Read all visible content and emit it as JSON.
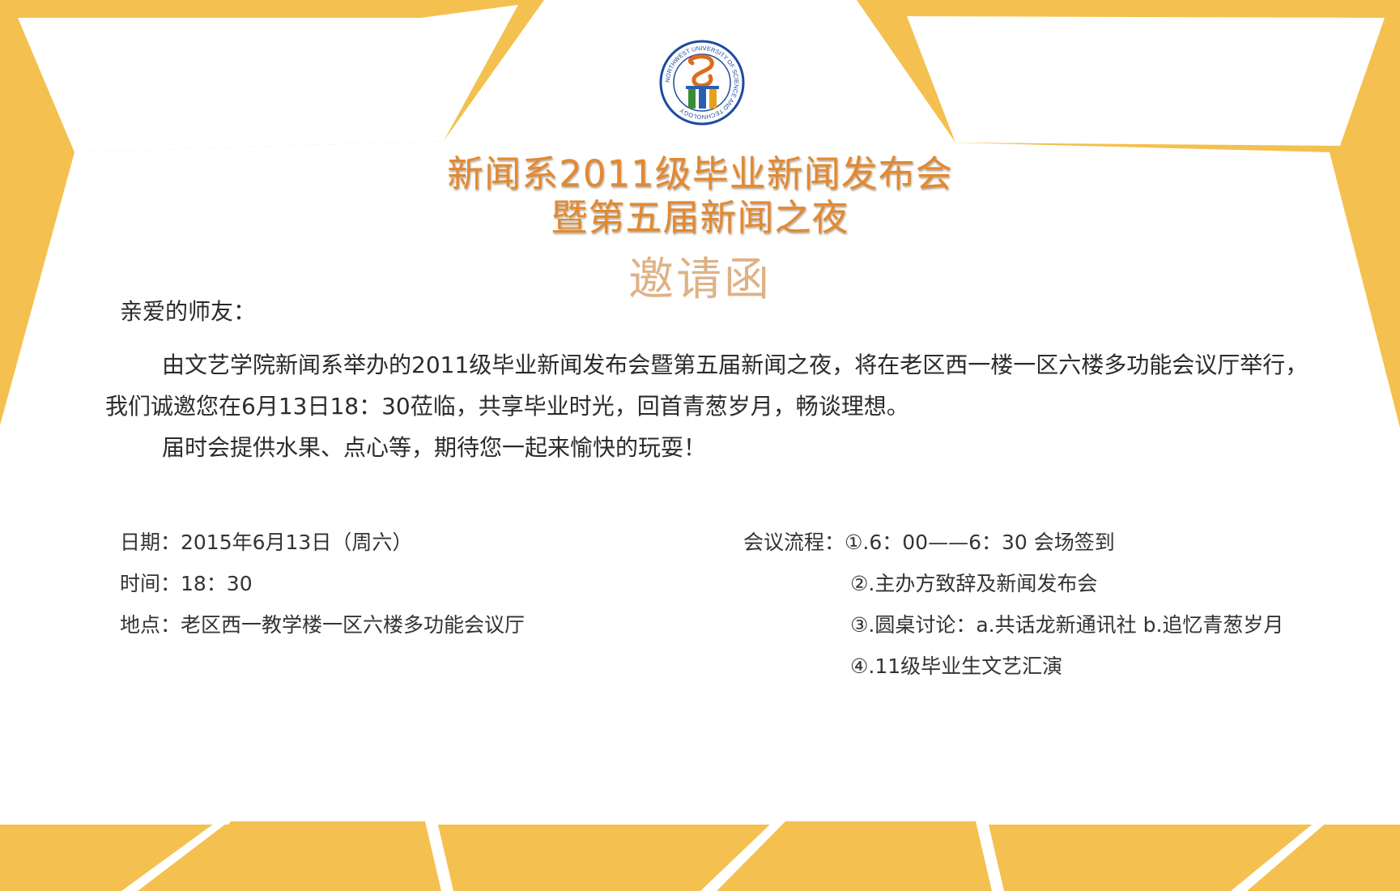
{
  "header": {
    "emblem_icon": "university-emblem-icon",
    "emblem_ring_text": "NORTHWEST UNIVERSITY OF SCIENCE AND TECHNOLOGY",
    "title_line1": "新闻系2011级毕业新闻发布会",
    "title_line2": "暨第五届新闻之夜",
    "invitation_label": "邀请函"
  },
  "letter": {
    "greeting": "亲爱的师友：",
    "paragraphs": [
      "由文艺学院新闻系举办的2011级毕业新闻发布会暨第五届新闻之夜，将在老区西一楼一区六楼多功能会议厅举行，我们诚邀您在6月13日18：30莅临，共享毕业时光，回首青葱岁月，畅谈理想。",
      "届时会提供水果、点心等，期待您一起来愉快的玩耍！"
    ]
  },
  "details": {
    "date": "日期：2015年6月13日（周六）",
    "time": "时间：18：30",
    "place": "地点：老区西一教学楼一区六楼多功能会议厅"
  },
  "agenda": {
    "label": "会议流程：",
    "items": [
      "①.6：00——6：30 会场签到",
      "②.主办方致辞及新闻发布会",
      "③.圆桌讨论：a.共话龙新通讯社 b.追忆青葱岁月",
      "④.11级毕业生文艺汇演"
    ]
  },
  "colors": {
    "background_shapes": "#f4c04f",
    "title": "#e3892f",
    "invitation_label": "#deb287",
    "body_text": "#2b2b2b"
  }
}
